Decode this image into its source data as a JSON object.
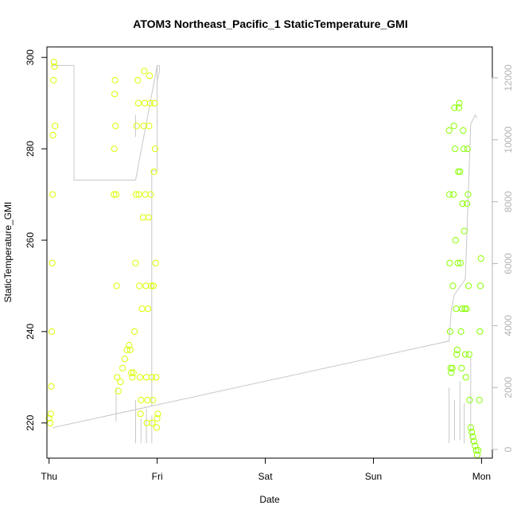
{
  "chart_data": {
    "type": "scatter",
    "title": "ATOM3 Northeast_Pacific_1 StaticTemperature_GMI",
    "xlabel": "Date",
    "ylabel": "StaticTemperature_GMI",
    "x_ticks": [
      "Thu",
      "Fri",
      "Sat",
      "Sun",
      "Mon"
    ],
    "x_tick_values": [
      0,
      1,
      2,
      3,
      4
    ],
    "xlim": [
      -0.02,
      4.1
    ],
    "y_ticks": [
      220,
      240,
      260,
      280,
      300
    ],
    "ylim": [
      212.3,
      302.3
    ],
    "y2_ticks": [
      0,
      2000,
      4000,
      6000,
      8000,
      10000,
      12000
    ],
    "y2lim": [
      -280,
      13000
    ],
    "grid": false,
    "colors": {
      "early_points": "#ddff00",
      "late_points": "#88ff00",
      "secondary_line": "#c8c8c8",
      "axis": "#000000",
      "right_axis": "#b3b3b3"
    },
    "secondary_series": [
      [
        0.02,
        12400
      ],
      [
        0.23,
        12400
      ],
      [
        0.23,
        8700
      ],
      [
        0.5,
        8700
      ],
      [
        0.8,
        8700
      ],
      [
        1.0,
        12400
      ],
      [
        1.0,
        11900
      ],
      [
        1.02,
        12200
      ],
      [
        1.02,
        12400
      ],
      [
        1.0,
        12400
      ],
      [
        1.0,
        9000
      ],
      [
        0.95,
        9000
      ],
      [
        0.95,
        1400
      ],
      [
        0.03,
        700
      ],
      [
        3.7,
        3500
      ],
      [
        3.72,
        4500
      ],
      [
        3.75,
        5000
      ],
      [
        3.85,
        5500
      ],
      [
        3.9,
        10500
      ],
      [
        3.94,
        10800
      ],
      [
        3.96,
        10700
      ]
    ],
    "secondary_verticals": [
      [
        0.62,
        900,
        2000
      ],
      [
        0.8,
        10100,
        10800
      ],
      [
        0.8,
        200,
        1600
      ],
      [
        0.85,
        200,
        1000
      ],
      [
        0.9,
        200,
        1300
      ],
      [
        0.95,
        200,
        1100
      ],
      [
        3.7,
        200,
        2000
      ],
      [
        3.75,
        300,
        1600
      ],
      [
        3.8,
        300,
        2200
      ],
      [
        3.84,
        200,
        1500
      ],
      [
        3.9,
        200,
        3000
      ]
    ],
    "series": [
      {
        "color_key": "early_points",
        "points": [
          [
            0.0,
            221
          ],
          [
            0.01,
            220
          ],
          [
            0.015,
            222
          ],
          [
            0.02,
            228
          ],
          [
            0.025,
            240
          ],
          [
            0.03,
            255
          ],
          [
            0.033,
            270
          ],
          [
            0.036,
            283
          ],
          [
            0.04,
            295
          ],
          [
            0.045,
            299
          ],
          [
            0.05,
            298
          ],
          [
            0.055,
            285
          ],
          [
            0.6,
            270
          ],
          [
            0.603,
            280
          ],
          [
            0.606,
            292
          ],
          [
            0.61,
            295
          ],
          [
            0.615,
            285
          ],
          [
            0.62,
            270
          ],
          [
            0.625,
            250
          ],
          [
            0.63,
            230
          ],
          [
            0.64,
            227
          ],
          [
            0.66,
            229
          ],
          [
            0.68,
            232
          ],
          [
            0.7,
            234
          ],
          [
            0.72,
            236
          ],
          [
            0.74,
            237
          ],
          [
            0.75,
            236
          ],
          [
            0.76,
            231
          ],
          [
            0.77,
            230
          ],
          [
            0.78,
            231
          ],
          [
            0.79,
            240
          ],
          [
            0.8,
            255
          ],
          [
            0.805,
            270
          ],
          [
            0.81,
            285
          ],
          [
            0.82,
            295
          ],
          [
            0.825,
            290
          ],
          [
            0.83,
            270
          ],
          [
            0.835,
            250
          ],
          [
            0.84,
            230
          ],
          [
            0.845,
            222
          ],
          [
            0.85,
            225
          ],
          [
            0.86,
            245
          ],
          [
            0.87,
            265
          ],
          [
            0.875,
            285
          ],
          [
            0.88,
            297
          ],
          [
            0.885,
            290
          ],
          [
            0.89,
            270
          ],
          [
            0.895,
            250
          ],
          [
            0.9,
            230
          ],
          [
            0.905,
            220
          ],
          [
            0.91,
            225
          ],
          [
            0.915,
            245
          ],
          [
            0.92,
            265
          ],
          [
            0.925,
            285
          ],
          [
            0.93,
            296
          ],
          [
            0.935,
            290
          ],
          [
            0.94,
            270
          ],
          [
            0.945,
            250
          ],
          [
            0.95,
            230
          ],
          [
            0.955,
            220
          ],
          [
            0.96,
            225
          ],
          [
            0.965,
            250
          ],
          [
            0.97,
            275
          ],
          [
            0.975,
            290
          ],
          [
            0.98,
            280
          ],
          [
            0.985,
            255
          ],
          [
            0.99,
            230
          ],
          [
            0.995,
            219
          ],
          [
            1.0,
            221
          ],
          [
            1.005,
            222
          ]
        ]
      },
      {
        "color_key": "late_points",
        "points": [
          [
            3.7,
            284
          ],
          [
            3.703,
            270
          ],
          [
            3.706,
            255
          ],
          [
            3.71,
            240
          ],
          [
            3.715,
            232
          ],
          [
            3.72,
            231
          ],
          [
            3.73,
            232
          ],
          [
            3.735,
            250
          ],
          [
            3.74,
            270
          ],
          [
            3.745,
            285
          ],
          [
            3.75,
            289
          ],
          [
            3.755,
            280
          ],
          [
            3.76,
            260
          ],
          [
            3.765,
            245
          ],
          [
            3.77,
            235
          ],
          [
            3.775,
            236
          ],
          [
            3.78,
            255
          ],
          [
            3.785,
            275
          ],
          [
            3.79,
            289
          ],
          [
            3.795,
            290
          ],
          [
            3.8,
            275
          ],
          [
            3.805,
            255
          ],
          [
            3.81,
            240
          ],
          [
            3.815,
            232
          ],
          [
            3.82,
            245
          ],
          [
            3.825,
            268
          ],
          [
            3.83,
            284
          ],
          [
            3.835,
            280
          ],
          [
            3.84,
            262
          ],
          [
            3.845,
            245
          ],
          [
            3.85,
            235
          ],
          [
            3.855,
            230
          ],
          [
            3.86,
            245
          ],
          [
            3.865,
            268
          ],
          [
            3.87,
            280
          ],
          [
            3.875,
            270
          ],
          [
            3.88,
            250
          ],
          [
            3.885,
            235
          ],
          [
            3.89,
            225
          ],
          [
            3.9,
            219
          ],
          [
            3.91,
            218
          ],
          [
            3.92,
            217
          ],
          [
            3.93,
            216
          ],
          [
            3.94,
            215
          ],
          [
            3.95,
            214
          ],
          [
            3.96,
            213
          ],
          [
            3.97,
            214
          ],
          [
            3.98,
            225
          ],
          [
            3.985,
            240
          ],
          [
            3.99,
            250
          ],
          [
            3.995,
            256
          ]
        ]
      }
    ]
  }
}
